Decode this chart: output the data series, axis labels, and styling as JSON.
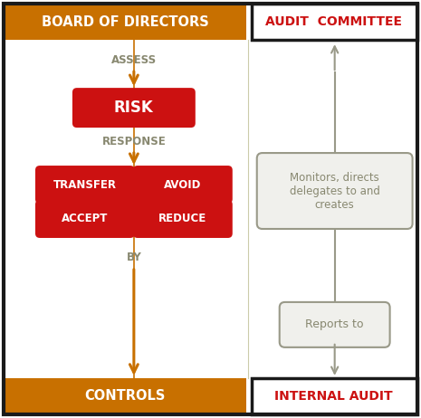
{
  "bg_color": "#ffffff",
  "outer_border_color": "#1a1a1a",
  "orange_color": "#c87000",
  "red_color": "#cc1111",
  "gray_text_color": "#888870",
  "white_text_color": "#ffffff",
  "red_text_color": "#cc1111",
  "arrow_color": "#999988",
  "top_bar_text": "BOARD OF DIRECTORS",
  "top_right_text": "AUDIT  COMMITTEE",
  "bottom_left_text": "CONTROLS",
  "bottom_right_text": "INTERNAL AUDIT",
  "assess_text": "ASSESS",
  "risk_text": "RISK",
  "response_text": "RESPONSE",
  "by_text": "BY",
  "transfer_text": "TRANSFER",
  "avoid_text": "AVOID",
  "accept_text": "ACCEPT",
  "reduce_text": "REDUCE",
  "monitors_text": "Monitors, directs\ndelegates to and\ncreates",
  "reports_text": "Reports to"
}
